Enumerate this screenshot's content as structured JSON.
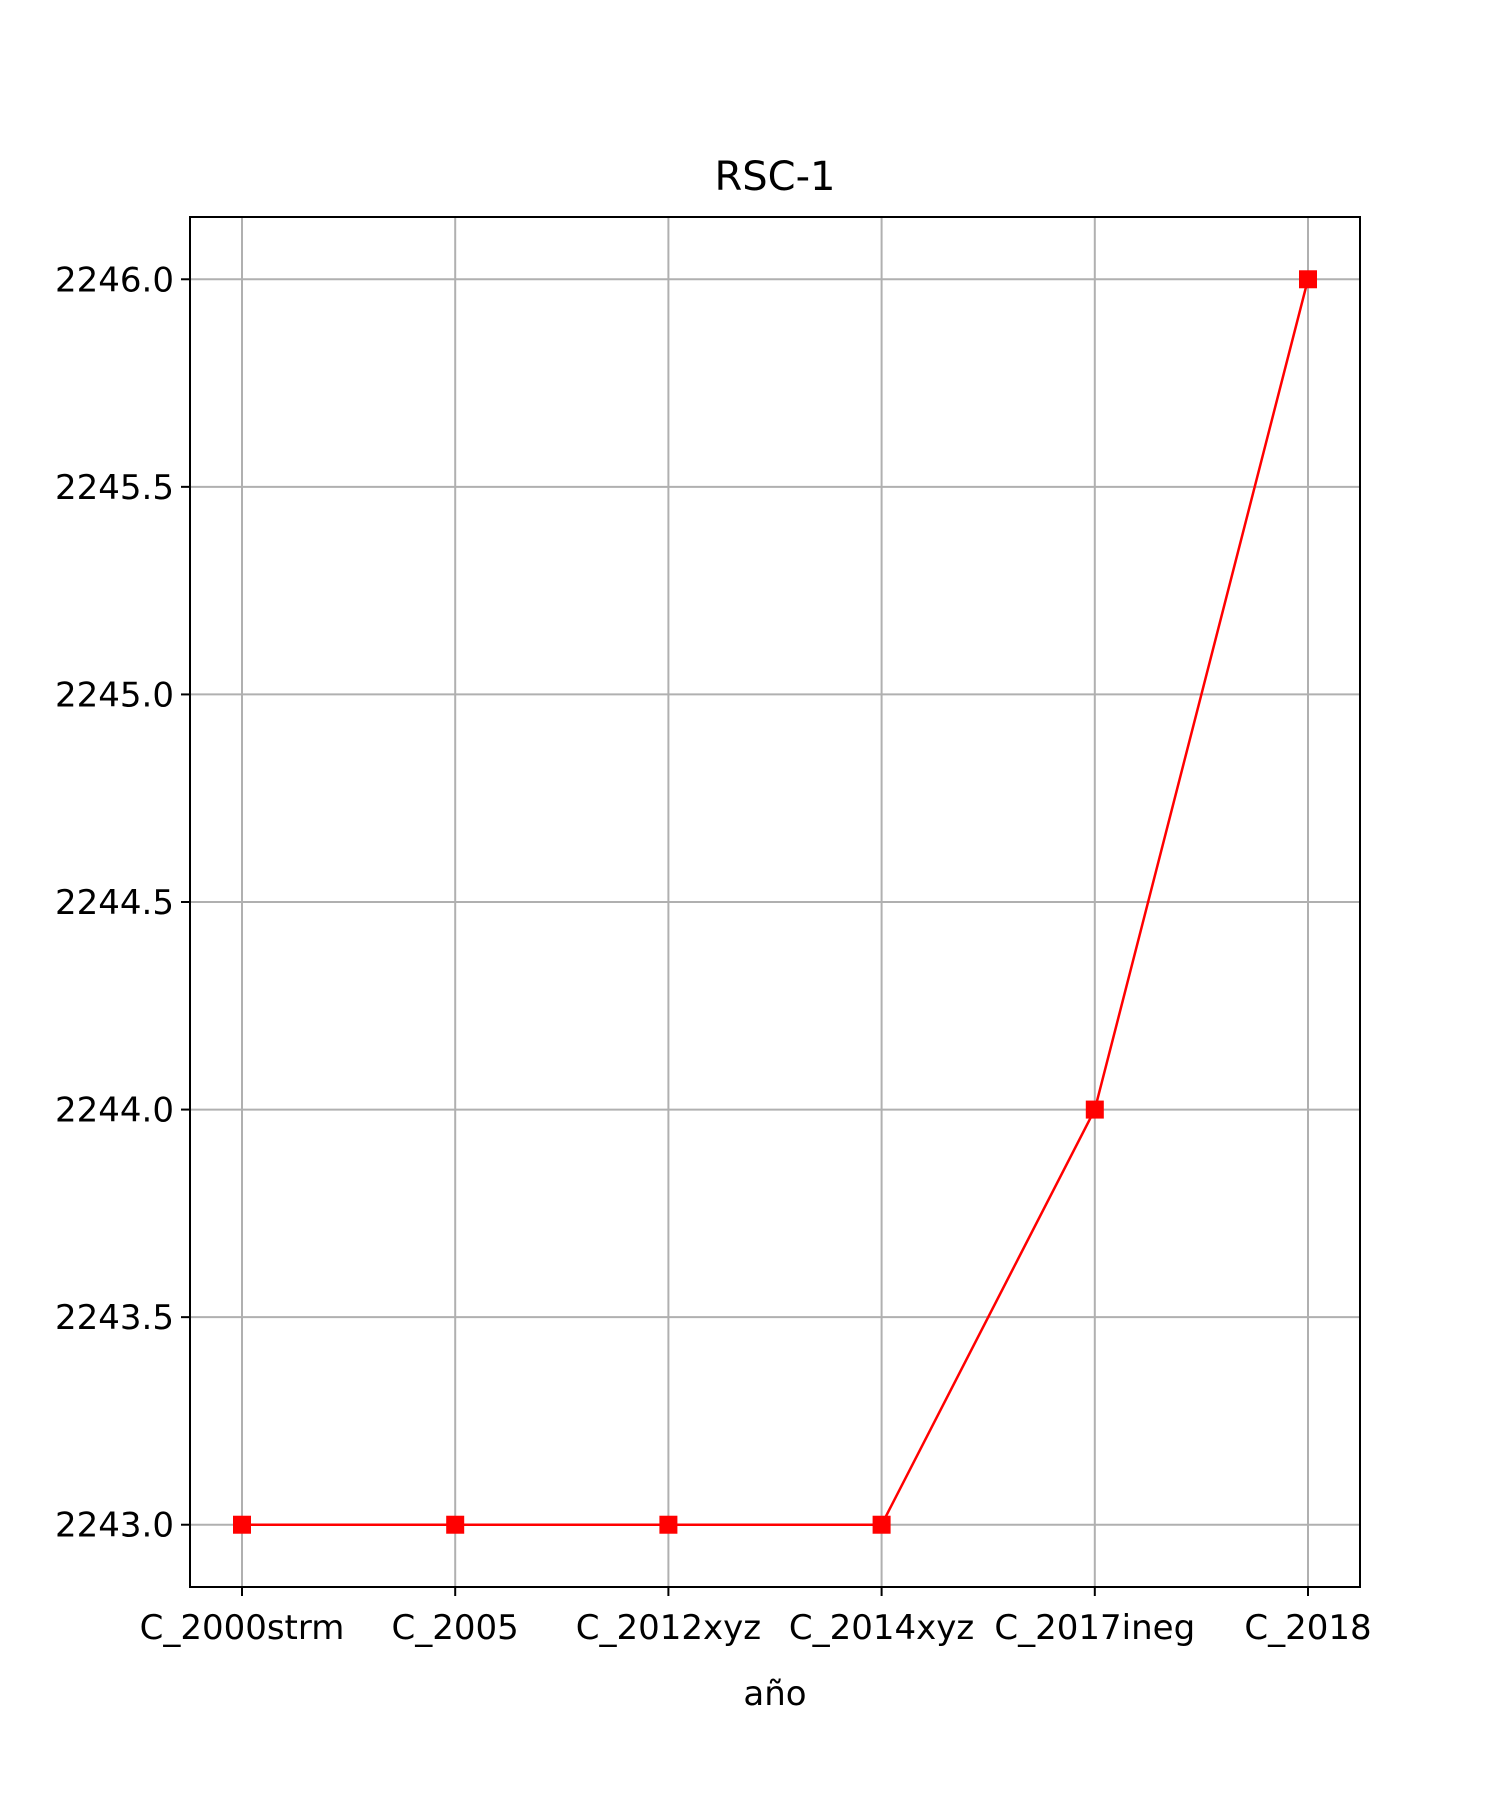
{
  "chart_data": {
    "type": "line",
    "title": "RSC-1",
    "xlabel": "año",
    "ylabel": "",
    "categories": [
      "C_2000strm",
      "C_2005",
      "C_2012xyz",
      "C_2014xyz",
      "C_2017ineg",
      "C_2018"
    ],
    "series": [
      {
        "values": [
          2243,
          2243,
          2243,
          2243,
          2244,
          2246
        ],
        "color": "#ff0000",
        "marker": "square"
      }
    ],
    "ylim": [
      2242.85,
      2246.15
    ],
    "yticks": [
      2243.0,
      2243.5,
      2244.0,
      2244.5,
      2245.0,
      2245.5,
      2246.0
    ],
    "ytick_labels": [
      "2243.0",
      "2243.5",
      "2244.0",
      "2244.5",
      "2245.0",
      "2245.5",
      "2246.0"
    ],
    "grid": true,
    "colors": {
      "line": "#ff0000",
      "grid": "#b0b0b0",
      "axes": "#000000"
    }
  }
}
